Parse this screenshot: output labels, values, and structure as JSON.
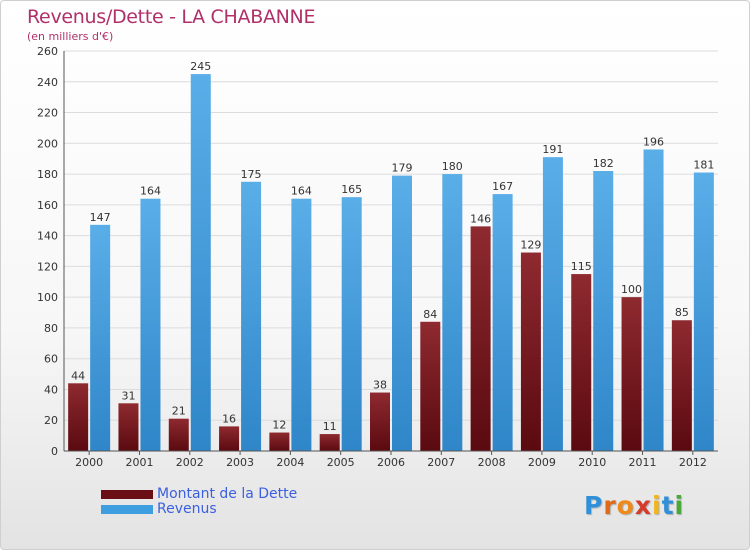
{
  "chart_data": {
    "type": "bar",
    "title": "Revenus/Dette - LA CHABANNE",
    "subtitle": "(en milliers d'€)",
    "categories": [
      "2000",
      "2001",
      "2002",
      "2003",
      "2004",
      "2005",
      "2006",
      "2007",
      "2008",
      "2009",
      "2010",
      "2011",
      "2012"
    ],
    "series": [
      {
        "name": "Montant de la Dette",
        "values": [
          44,
          31,
          21,
          16,
          12,
          11,
          38,
          84,
          146,
          129,
          115,
          100,
          85
        ],
        "color": "#7a1a22"
      },
      {
        "name": "Revenus",
        "values": [
          147,
          164,
          245,
          175,
          164,
          165,
          179,
          180,
          167,
          191,
          182,
          196,
          181
        ],
        "color": "#3f9ee0"
      }
    ],
    "ylim": [
      0,
      260
    ],
    "yticks": [
      0,
      20,
      40,
      60,
      80,
      100,
      120,
      140,
      160,
      180,
      200,
      220,
      240,
      260
    ],
    "grid": true,
    "legend_position": "bottom-left"
  },
  "brand": {
    "logo_text": "Proxiti",
    "letter_colors": [
      "#2f8fd8",
      "#e06a1a",
      "#ef8a1a",
      "#d63a2a",
      "#f2b51a",
      "#2f8fd8",
      "#4aa83a"
    ]
  }
}
